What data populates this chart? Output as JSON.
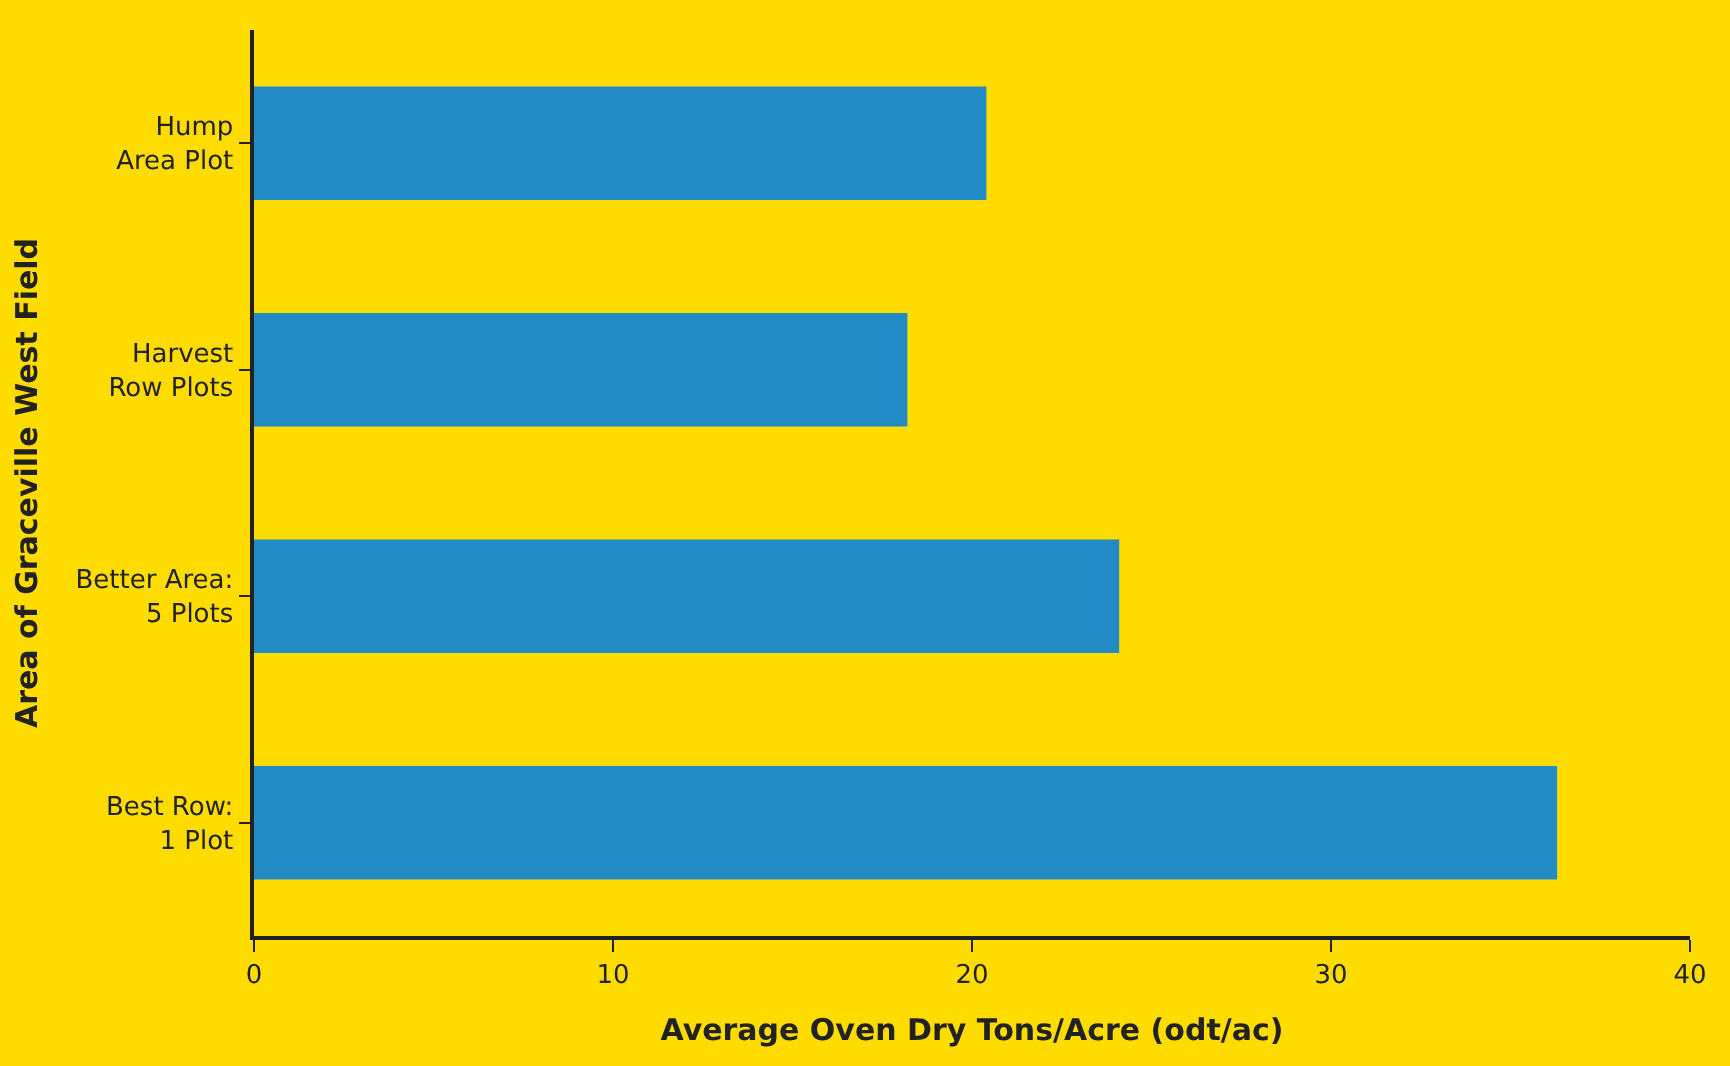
{
  "chart_data": {
    "type": "bar",
    "orientation": "horizontal",
    "categories": [
      "Hump\nArea Plot",
      "Harvest\nRow Plots",
      "Better Area:\n5 Plots",
      "Best Row:\n1 Plot"
    ],
    "values": [
      20.4,
      18.2,
      24.1,
      36.3
    ],
    "color": "#228bc6",
    "xlabel": "Average Oven Dry Tons/Acre (odt/ac)",
    "ylabel": "Area of Graceville West Field",
    "xlim": [
      0,
      40
    ],
    "xticks": [
      0,
      10,
      20,
      30,
      40
    ],
    "grid": false,
    "legend": false
  }
}
